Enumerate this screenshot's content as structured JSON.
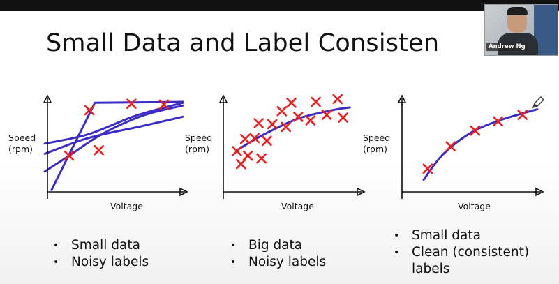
{
  "slide": {
    "title": "Small Data and Label Consisten",
    "presenter_name": "Andrew Ng"
  },
  "colors": {
    "fit_line": "#3b2cc8",
    "marker": "#ee1c1c",
    "axis": "#111111"
  },
  "chart_data": [
    {
      "type": "scatter",
      "xlabel": "Voltage",
      "ylabel": [
        "Speed",
        "(rpm)"
      ],
      "xlim": [
        0,
        10
      ],
      "ylim": [
        0,
        10
      ],
      "points": [
        [
          1.6,
          3.9
        ],
        [
          3.8,
          4.5
        ],
        [
          3.1,
          8.8
        ],
        [
          6.2,
          9.5
        ],
        [
          8.6,
          9.4
        ]
      ],
      "curves": [
        [
          [
            0.3,
            0.2
          ],
          [
            3.5,
            9.6
          ],
          [
            10,
            9.7
          ]
        ],
        [
          [
            -0.2,
            5.2
          ],
          [
            3,
            6.2
          ],
          [
            6.5,
            8.2
          ],
          [
            10,
            9.6
          ]
        ],
        [
          [
            -0.2,
            2.2
          ],
          [
            1.5,
            3.8
          ],
          [
            4,
            6.2
          ],
          [
            7,
            8.2
          ],
          [
            10,
            9.3
          ]
        ],
        [
          [
            -0.2,
            4.1
          ],
          [
            3,
            5.8
          ],
          [
            7,
            7.1
          ],
          [
            10,
            8.1
          ]
        ]
      ]
    },
    {
      "type": "scatter",
      "xlabel": "Voltage",
      "ylabel": [
        "Speed",
        "(rpm)"
      ],
      "xlim": [
        0,
        10
      ],
      "ylim": [
        0,
        10
      ],
      "points": [
        [
          1.0,
          4.4
        ],
        [
          1.3,
          3.0
        ],
        [
          1.6,
          5.7
        ],
        [
          1.8,
          3.9
        ],
        [
          2.3,
          5.8
        ],
        [
          2.6,
          7.4
        ],
        [
          2.8,
          3.6
        ],
        [
          3.2,
          5.5
        ],
        [
          3.6,
          7.3
        ],
        [
          4.3,
          8.7
        ],
        [
          4.6,
          7.0
        ],
        [
          5.0,
          9.6
        ],
        [
          5.5,
          8.1
        ],
        [
          6.4,
          7.7
        ],
        [
          6.8,
          9.7
        ],
        [
          7.6,
          8.3
        ],
        [
          8.4,
          10.0
        ],
        [
          8.8,
          8.0
        ]
      ],
      "curves": [
        [
          [
            1.0,
            4.5
          ],
          [
            3,
            6.2
          ],
          [
            5.5,
            7.9
          ],
          [
            8,
            8.8
          ],
          [
            9.3,
            9.1
          ]
        ]
      ]
    },
    {
      "type": "scatter",
      "xlabel": "Voltage",
      "ylabel": [
        "Speed",
        "(rpm)"
      ],
      "xlim": [
        0,
        10
      ],
      "ylim": [
        0,
        10
      ],
      "points": [
        [
          1.9,
          2.5
        ],
        [
          3.6,
          4.9
        ],
        [
          5.4,
          6.6
        ],
        [
          7.1,
          7.6
        ],
        [
          8.9,
          8.3
        ]
      ],
      "curves": [
        [
          [
            1.6,
            1.3
          ],
          [
            3,
            4
          ],
          [
            5,
            6.3
          ],
          [
            7,
            7.6
          ],
          [
            9,
            8.5
          ],
          [
            10,
            8.9
          ]
        ]
      ]
    }
  ],
  "bullets": [
    [
      "Small data",
      "Noisy labels"
    ],
    [
      "Big data",
      "Noisy labels"
    ],
    [
      "Small data",
      "Clean (consistent) labels"
    ]
  ]
}
